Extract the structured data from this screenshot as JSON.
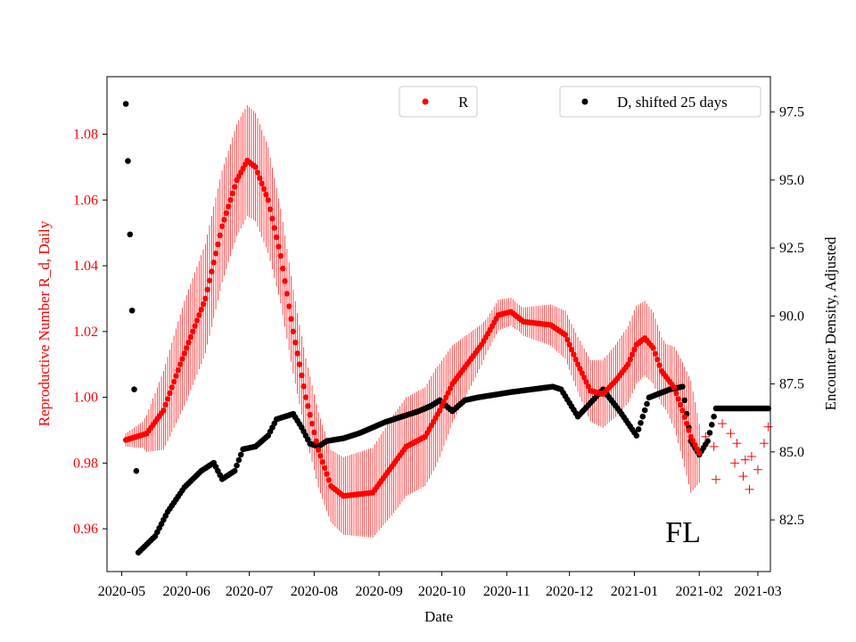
{
  "chart_data": {
    "type": "scatter",
    "region_label": "FL",
    "xlabel": "Date",
    "ylabel_left": "Reproductive Number R_d, Daily",
    "ylabel_right": "Encounter Density, Adjusted",
    "x_ticks": [
      "2020-05",
      "2020-06",
      "2020-07",
      "2020-08",
      "2020-09",
      "2020-10",
      "2020-11",
      "2020-12",
      "2021-01",
      "2021-02",
      "2021-03"
    ],
    "y_left_ticks": [
      "0.96",
      "0.98",
      "1.00",
      "1.02",
      "1.04",
      "1.06",
      "1.08"
    ],
    "y_right_ticks": [
      "82.5",
      "85.0",
      "87.5",
      "90.0",
      "92.5",
      "95.0",
      "97.5"
    ],
    "y_left_range": [
      0.947,
      1.0975
    ],
    "y_right_range": [
      80.6,
      98.8
    ],
    "x_range_days": [
      -7,
      310
    ],
    "legend": {
      "r_label": "R",
      "d_label": "D, shifted 25 days"
    },
    "colors": {
      "r": "#ff0000",
      "d": "#000000",
      "left_axis": "#ff0000"
    },
    "r_series_knots": [
      [
        2,
        0.987
      ],
      [
        12,
        0.989
      ],
      [
        20,
        0.996
      ],
      [
        28,
        1.01
      ],
      [
        40,
        1.03
      ],
      [
        48,
        1.052
      ],
      [
        55,
        1.066
      ],
      [
        60,
        1.072
      ],
      [
        64,
        1.07
      ],
      [
        70,
        1.06
      ],
      [
        76,
        1.043
      ],
      [
        82,
        1.02
      ],
      [
        88,
        1.0
      ],
      [
        94,
        0.984
      ],
      [
        100,
        0.973
      ],
      [
        106,
        0.97
      ],
      [
        120,
        0.971
      ],
      [
        128,
        0.978
      ],
      [
        136,
        0.985
      ],
      [
        145,
        0.988
      ],
      [
        152,
        0.996
      ],
      [
        158,
        1.004
      ],
      [
        165,
        1.01
      ],
      [
        172,
        1.016
      ],
      [
        180,
        1.025
      ],
      [
        186,
        1.026
      ],
      [
        192,
        1.023
      ],
      [
        205,
        1.022
      ],
      [
        212,
        1.019
      ],
      [
        218,
        1.01
      ],
      [
        224,
        1.002
      ],
      [
        230,
        1.001
      ],
      [
        236,
        1.005
      ],
      [
        242,
        1.01
      ],
      [
        246,
        1.016
      ],
      [
        250,
        1.018
      ],
      [
        254,
        1.015
      ],
      [
        258,
        1.008
      ],
      [
        264,
        1.003
      ],
      [
        268,
        0.996
      ],
      [
        272,
        0.988
      ],
      [
        276,
        0.983
      ]
    ],
    "r_error_knots": [
      [
        2,
        0.002
      ],
      [
        10,
        0.004
      ],
      [
        20,
        0.012
      ],
      [
        30,
        0.016
      ],
      [
        45,
        0.017
      ],
      [
        58,
        0.017
      ],
      [
        70,
        0.016
      ],
      [
        85,
        0.012
      ],
      [
        100,
        0.011
      ],
      [
        115,
        0.013
      ],
      [
        130,
        0.015
      ],
      [
        150,
        0.015
      ],
      [
        175,
        0.005
      ],
      [
        190,
        0.004
      ],
      [
        210,
        0.007
      ],
      [
        228,
        0.01
      ],
      [
        245,
        0.012
      ],
      [
        260,
        0.01
      ],
      [
        272,
        0.017
      ],
      [
        278,
        0.005
      ]
    ],
    "r_crosses": [
      [
        279,
        0.988
      ],
      [
        283,
        0.985
      ],
      [
        287,
        0.992
      ],
      [
        291,
        0.989
      ],
      [
        294,
        0.986
      ],
      [
        298,
        0.981
      ],
      [
        301,
        0.982
      ],
      [
        304,
        0.978
      ],
      [
        307,
        0.986
      ],
      [
        309,
        0.991
      ],
      [
        284,
        0.975
      ],
      [
        293,
        0.98
      ],
      [
        297,
        0.976
      ],
      [
        300,
        0.972
      ]
    ],
    "d_series_knots": [
      [
        2,
        97.8
      ],
      [
        3,
        95.7
      ],
      [
        4,
        93.0
      ],
      [
        5,
        90.2
      ],
      [
        6,
        87.3
      ],
      [
        7,
        84.3
      ],
      [
        8,
        81.3
      ],
      [
        16,
        81.9
      ],
      [
        22,
        82.8
      ],
      [
        30,
        83.7
      ],
      [
        38,
        84.3
      ],
      [
        44,
        84.6
      ],
      [
        48,
        84.0
      ],
      [
        54,
        84.3
      ],
      [
        58,
        85.1
      ],
      [
        64,
        85.2
      ],
      [
        70,
        85.6
      ],
      [
        74,
        86.2
      ],
      [
        82,
        86.4
      ],
      [
        86,
        85.9
      ],
      [
        90,
        85.3
      ],
      [
        94,
        85.2
      ],
      [
        98,
        85.4
      ],
      [
        106,
        85.5
      ],
      [
        114,
        85.7
      ],
      [
        120,
        85.9
      ],
      [
        126,
        86.1
      ],
      [
        134,
        86.3
      ],
      [
        142,
        86.5
      ],
      [
        148,
        86.7
      ],
      [
        152,
        86.9
      ],
      [
        158,
        86.5
      ],
      [
        164,
        86.9
      ],
      [
        170,
        87.0
      ],
      [
        178,
        87.1
      ],
      [
        186,
        87.2
      ],
      [
        196,
        87.3
      ],
      [
        206,
        87.4
      ],
      [
        210,
        87.3
      ],
      [
        214,
        86.8
      ],
      [
        218,
        86.3
      ],
      [
        224,
        86.8
      ],
      [
        230,
        87.3
      ],
      [
        238,
        86.5
      ],
      [
        246,
        85.6
      ],
      [
        252,
        87.0
      ],
      [
        262,
        87.3
      ],
      [
        268,
        87.4
      ],
      [
        272,
        85.4
      ],
      [
        276,
        84.9
      ],
      [
        280,
        85.4
      ],
      [
        284,
        86.6
      ],
      [
        296,
        86.6
      ],
      [
        309,
        86.6
      ]
    ]
  }
}
